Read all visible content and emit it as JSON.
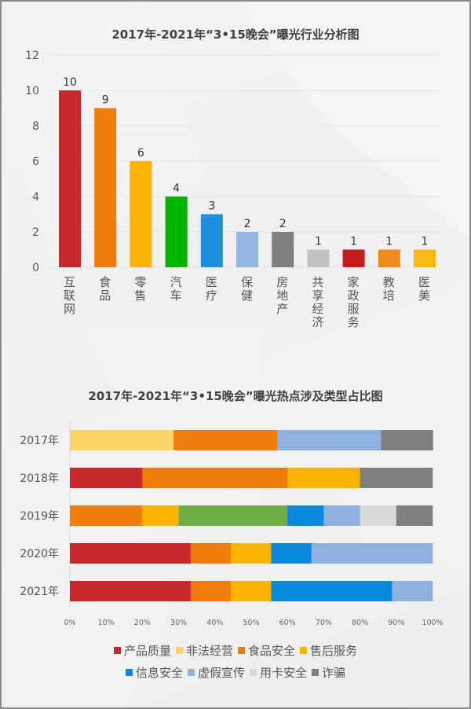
{
  "chart_data": [
    {
      "type": "bar",
      "title": "2017年-2021年“3•15晚会”曝光行业分析图",
      "xlabel": "",
      "ylabel": "",
      "ylim": [
        0,
        12
      ],
      "yticks": [
        0,
        2,
        4,
        6,
        8,
        10,
        12
      ],
      "grid": true,
      "categories": [
        "互联网",
        "食品",
        "零售",
        "汽车",
        "医疗",
        "保健",
        "房地产",
        "共享经济",
        "家政服务",
        "教培",
        "医美"
      ],
      "values": [
        10,
        9,
        6,
        4,
        3,
        2,
        2,
        1,
        1,
        1,
        1
      ],
      "colors": [
        "#c8272e",
        "#ee7d0a",
        "#fbb301",
        "#00b400",
        "#1e90dc",
        "#92b6e2",
        "#7f7f7f",
        "#c2c2c2",
        "#c31a1a",
        "#f08a1e",
        "#fbb716"
      ]
    },
    {
      "type": "bar",
      "orientation": "horizontal",
      "stacked": "percent",
      "title": "2017年-2021年“3•15晚会”曝光热点涉及类型占比图",
      "xlim": [
        0,
        100
      ],
      "xticks": [
        "0%",
        "10%",
        "20%",
        "30%",
        "40%",
        "50%",
        "60%",
        "70%",
        "80%",
        "90%",
        "100%"
      ],
      "categories": [
        "2017年",
        "2018年",
        "2019年",
        "2020年",
        "2021年"
      ],
      "legend_position": "bottom",
      "legend": [
        {
          "name": "产品质量",
          "color": "#c8282e"
        },
        {
          "name": "非法经营",
          "color": "#fdd266"
        },
        {
          "name": "食品安全",
          "color": "#ee7d0a"
        },
        {
          "name": "售后服务",
          "color": "#fbb301"
        },
        {
          "name": "信息安全",
          "color": "#0a88dc"
        },
        {
          "name": "虚假宣传",
          "color": "#8eb2df"
        },
        {
          "name": "用卡安全",
          "color": "#d9d9d9"
        },
        {
          "name": "诈骗",
          "color": "#7f7f7f"
        }
      ],
      "rows": [
        {
          "year": "2017年",
          "segments": [
            {
              "series": "非法经营",
              "color": "#fdd266",
              "percent": 28.6
            },
            {
              "series": "食品安全",
              "color": "#ee7d0a",
              "percent": 28.6
            },
            {
              "series": "虚假宣传",
              "color": "#8eb2df",
              "percent": 28.6
            },
            {
              "series": "诈骗",
              "color": "#7f7f7f",
              "percent": 14.3
            }
          ]
        },
        {
          "year": "2018年",
          "segments": [
            {
              "series": "产品质量",
              "color": "#c8282e",
              "percent": 20
            },
            {
              "series": "食品安全",
              "color": "#ee7d0a",
              "percent": 40
            },
            {
              "series": "售后服务",
              "color": "#fbb301",
              "percent": 20
            },
            {
              "series": "诈骗",
              "color": "#7f7f7f",
              "percent": 20
            }
          ]
        },
        {
          "year": "2019年",
          "segments": [
            {
              "series": "食品安全",
              "color": "#ee7d0a",
              "percent": 20
            },
            {
              "series": "售后服务",
              "color": "#fbb301",
              "percent": 10
            },
            {
              "series": "",
              "color": "#6fad47",
              "percent": 30
            },
            {
              "series": "信息安全",
              "color": "#0a88dc",
              "percent": 10
            },
            {
              "series": "虚假宣传",
              "color": "#8eb2df",
              "percent": 10
            },
            {
              "series": "用卡安全",
              "color": "#d9d9d9",
              "percent": 10
            },
            {
              "series": "诈骗",
              "color": "#7f7f7f",
              "percent": 10
            }
          ]
        },
        {
          "year": "2020年",
          "segments": [
            {
              "series": "产品质量",
              "color": "#c8282e",
              "percent": 33.3
            },
            {
              "series": "食品安全",
              "color": "#ee7d0a",
              "percent": 11.1
            },
            {
              "series": "售后服务",
              "color": "#fbb301",
              "percent": 11.1
            },
            {
              "series": "信息安全",
              "color": "#0a88dc",
              "percent": 11.1
            },
            {
              "series": "虚假宣传",
              "color": "#8eb2df",
              "percent": 33.4
            }
          ]
        },
        {
          "year": "2021年",
          "segments": [
            {
              "series": "产品质量",
              "color": "#c8282e",
              "percent": 33.3
            },
            {
              "series": "食品安全",
              "color": "#ee7d0a",
              "percent": 11.1
            },
            {
              "series": "售后服务",
              "color": "#fbb301",
              "percent": 11.1
            },
            {
              "series": "信息安全",
              "color": "#0a88dc",
              "percent": 33.3
            },
            {
              "series": "虚假宣传",
              "color": "#8eb2df",
              "percent": 11.2
            }
          ]
        }
      ]
    }
  ]
}
